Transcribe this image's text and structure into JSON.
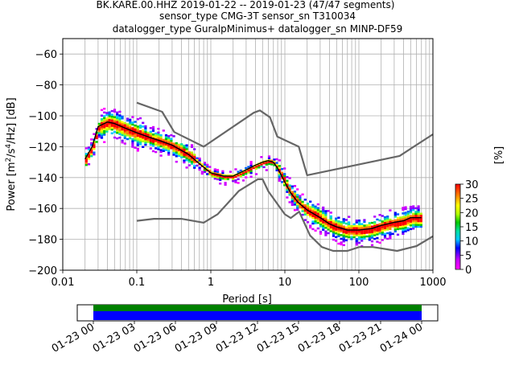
{
  "title_lines": [
    "BK.KARE.00.HHZ   2019-01-22 -- 2019-01-23  (47/47 segments)",
    "sensor_type CMG-3T sensor_sn T310034",
    "datalogger_type GuralpMinimus+ datalogger_sn MINP-DF59"
  ],
  "chart_data": [
    {
      "type": "heatmap",
      "xlabel": "Period [s]",
      "ylabel_prefix": "Power [m",
      "ylabel_full": "Power [m2/s4/Hz] [dB]",
      "xscale": "log",
      "xlim": [
        0.01,
        1000
      ],
      "ylim": [
        -200,
        -50
      ],
      "x_ticks": [
        "0.01",
        "0.1",
        "1",
        "10",
        "100",
        "1000"
      ],
      "x_tick_values": [
        0.01,
        0.1,
        1,
        10,
        100,
        1000
      ],
      "y_ticks": [
        "−60",
        "−80",
        "−100",
        "−120",
        "−140",
        "−160",
        "−180",
        "−200"
      ],
      "y_tick_values": [
        -60,
        -80,
        -100,
        -120,
        -140,
        -160,
        -180,
        -200
      ],
      "grid": true,
      "mean_psd": {
        "period": [
          0.02,
          0.025,
          0.03,
          0.04,
          0.05,
          0.07,
          0.1,
          0.15,
          0.2,
          0.3,
          0.5,
          0.7,
          1,
          1.5,
          2,
          3,
          4,
          5,
          6,
          7,
          8,
          10,
          12,
          15,
          20,
          30,
          40,
          50,
          70,
          100,
          150,
          200,
          300,
          400,
          500,
          700
        ],
        "power": [
          -128,
          -120,
          -107,
          -104,
          -105,
          -108,
          -111,
          -114,
          -116,
          -119,
          -125,
          -131,
          -137,
          -139,
          -139,
          -135,
          -132,
          -130,
          -129,
          -130,
          -134,
          -143,
          -150,
          -156,
          -161,
          -166,
          -170,
          -172,
          -174,
          -174,
          -173,
          -171,
          -169,
          -168,
          -166,
          -166
        ]
      },
      "nhnm": {
        "period": [
          0.1,
          0.22,
          0.32,
          0.8,
          3.8,
          4.6,
          6.3,
          7.9,
          15.4,
          20,
          354.8,
          1000
        ],
        "power": [
          -91.5,
          -97.4,
          -110.5,
          -120,
          -98,
          -96.5,
          -101,
          -113.5,
          -120,
          -138.5,
          -126,
          -112
        ]
      },
      "nlnm": {
        "period": [
          0.1,
          0.17,
          0.4,
          0.8,
          1.24,
          2.4,
          4.3,
          5,
          6,
          10,
          12,
          15.6,
          21.9,
          31.6,
          45,
          70,
          101,
          154,
          328,
          600,
          1000
        ],
        "power": [
          -168,
          -166.7,
          -166.7,
          -169.2,
          -163.7,
          -148.6,
          -141.1,
          -141.1,
          -149,
          -163.8,
          -166.2,
          -162.1,
          -177.5,
          -185,
          -187.5,
          -187.5,
          -185,
          -185,
          -187.5,
          -184.4,
          -178
        ]
      },
      "colorbar": {
        "label": "[%]",
        "range": [
          0,
          30
        ],
        "ticks": [
          "0",
          "5",
          "10",
          "15",
          "20",
          "25",
          "30"
        ],
        "tick_values": [
          0,
          5,
          10,
          15,
          20,
          25,
          30
        ],
        "colormap": "pqlx"
      }
    },
    {
      "type": "bar",
      "description": "data availability timeline",
      "x_ticks": [
        "01-23 00",
        "01-23 03",
        "01-23 06",
        "01-23 09",
        "01-23 12",
        "01-23 15",
        "01-23 18",
        "01-23 21",
        "01-24 00"
      ],
      "x_tick_hours": [
        0,
        3,
        6,
        9,
        12,
        15,
        18,
        21,
        24
      ],
      "covered_hours": [
        0,
        24
      ],
      "series": [
        {
          "color": "#008000"
        },
        {
          "color": "#0000ff"
        }
      ]
    }
  ],
  "colors": {
    "model_line": "#666666",
    "mean_line": "#000000",
    "grid": "#b0b0b0"
  }
}
